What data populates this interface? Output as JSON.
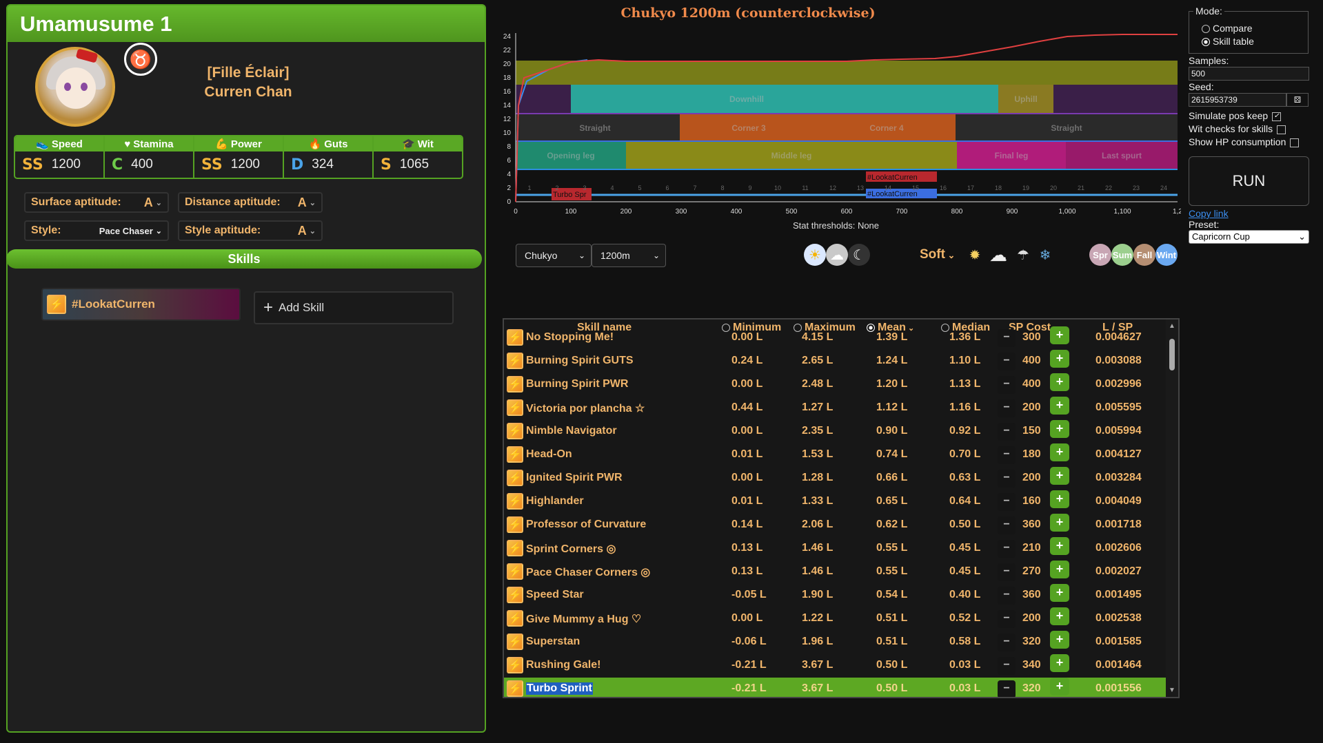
{
  "uma": {
    "title": "Umamusume 1",
    "outfit": "[Fille Éclair]",
    "name": "Curren Chan",
    "stats": [
      {
        "label": "Speed",
        "icon": "shoe-icon",
        "grade": "SS",
        "value": "1200",
        "grade_color": "#f3b33a"
      },
      {
        "label": "Stamina",
        "icon": "heart-icon",
        "grade": "C",
        "value": "400",
        "grade_color": "#6ecb4a"
      },
      {
        "label": "Power",
        "icon": "arm-icon",
        "grade": "SS",
        "value": "1200",
        "grade_color": "#f3b33a"
      },
      {
        "label": "Guts",
        "icon": "flame-icon",
        "grade": "D",
        "value": "324",
        "grade_color": "#4aa3e8"
      },
      {
        "label": "Wit",
        "icon": "graduation-cap-icon",
        "grade": "S",
        "value": "1065",
        "grade_color": "#f3b33a"
      }
    ],
    "surface_aptitude_label": "Surface aptitude:",
    "surface_aptitude": "A",
    "distance_aptitude_label": "Distance aptitude:",
    "distance_aptitude": "A",
    "style_label": "Style:",
    "style": "Pace Chaser",
    "style_aptitude_label": "Style aptitude:",
    "style_aptitude": "A",
    "skills_header": "Skills",
    "equipped_skill": "#LookatCurren",
    "add_skill": "Add Skill"
  },
  "chart": {
    "title": "Chukyo 1200m (counterclockwise)",
    "thresholds": "Stat thresholds: None",
    "y_ticks": [
      "0",
      "2",
      "4",
      "6",
      "8",
      "10",
      "12",
      "14",
      "16",
      "18",
      "20",
      "22",
      "24"
    ],
    "x_ticks": [
      "0",
      "100",
      "200",
      "300",
      "400",
      "500",
      "600",
      "700",
      "800",
      "900",
      "1,000",
      "1,100",
      "1,2"
    ],
    "section_numbers": [
      "1",
      "2",
      "3",
      "4",
      "5",
      "6",
      "7",
      "8",
      "9",
      "10",
      "11",
      "12",
      "13",
      "14",
      "15",
      "16",
      "17",
      "18",
      "19",
      "20",
      "21",
      "22",
      "23",
      "24"
    ],
    "track_labels": {
      "downhill": "Downhill",
      "uphill": "Uphill",
      "straight1": "Straight",
      "corner3": "Corner 3",
      "corner4": "Corner 4",
      "straight2": "Straight",
      "opening": "Opening leg",
      "middle": "Middle leg",
      "final": "Final leg",
      "last_spurt": "Last spurt"
    },
    "skill_markers": [
      "Turbo Spr",
      "#LookatCurren",
      "#LookatCurren"
    ],
    "colors": {
      "velocity": "#e04040",
      "accel": "#3b8ef0"
    }
  },
  "chart_data": {
    "type": "line",
    "title": "Chukyo 1200m (counterclockwise)",
    "xlim": [
      0,
      1200
    ],
    "ylim": [
      0,
      24
    ],
    "series": [
      {
        "x": [
          0,
          5,
          15,
          60,
          100,
          150,
          200,
          300,
          400,
          500,
          600,
          650,
          700,
          760,
          800,
          850,
          900,
          950,
          1000,
          1050,
          1100,
          1150,
          1200
        ],
        "y": [
          0,
          14,
          18,
          19.2,
          20.3,
          20.6,
          20.4,
          20.4,
          20.4,
          20.4,
          20.4,
          20.6,
          20.7,
          20.8,
          21.1,
          21.8,
          22.5,
          23.3,
          24.0,
          24.2,
          24.3,
          24.3,
          24.3
        ]
      },
      {
        "x": [
          0,
          5,
          20,
          60,
          100,
          130
        ],
        "y": [
          0,
          14,
          17.5,
          19.2,
          20.3,
          20.6
        ]
      }
    ]
  },
  "track": {
    "racetrack": "Chukyo",
    "distance": "1200m",
    "ground": "Soft",
    "time_icons": [
      "sun-icon",
      "cloudy-sun-icon",
      "moon-icon"
    ],
    "weather_icons": [
      "sunny-icon",
      "cloudy-icon",
      "rainy-icon",
      "snowy-icon"
    ],
    "seasons": [
      {
        "label": "Spr",
        "color": "#c8a6b4"
      },
      {
        "label": "Sum",
        "color": "#9ccf8e"
      },
      {
        "label": "Fall",
        "color": "#b58e72"
      },
      {
        "label": "Wint",
        "color": "#6aa8f0"
      }
    ]
  },
  "table": {
    "headers": {
      "name": "Skill name",
      "min": "Minimum",
      "max": "Maximum",
      "mean": "Mean",
      "median": "Median",
      "cost": "SP Cost",
      "lsp": "L / SP"
    },
    "rows": [
      {
        "name": "No Stopping Me!",
        "min": "0.00 L",
        "max": "4.15 L",
        "mean": "1.39 L",
        "median": "1.36 L",
        "cost": "300",
        "lsp": "0.004627"
      },
      {
        "name": "Burning Spirit GUTS",
        "min": "0.24 L",
        "max": "2.65 L",
        "mean": "1.24 L",
        "median": "1.10 L",
        "cost": "400",
        "lsp": "0.003088"
      },
      {
        "name": "Burning Spirit PWR",
        "min": "0.00 L",
        "max": "2.48 L",
        "mean": "1.20 L",
        "median": "1.13 L",
        "cost": "400",
        "lsp": "0.002996"
      },
      {
        "name": "Victoria por plancha ☆",
        "min": "0.44 L",
        "max": "1.27 L",
        "mean": "1.12 L",
        "median": "1.16 L",
        "cost": "200",
        "lsp": "0.005595"
      },
      {
        "name": "Nimble Navigator",
        "min": "0.00 L",
        "max": "2.35 L",
        "mean": "0.90 L",
        "median": "0.92 L",
        "cost": "150",
        "lsp": "0.005994"
      },
      {
        "name": "Head-On",
        "min": "0.01 L",
        "max": "1.53 L",
        "mean": "0.74 L",
        "median": "0.70 L",
        "cost": "180",
        "lsp": "0.004127"
      },
      {
        "name": "Ignited Spirit PWR",
        "min": "0.00 L",
        "max": "1.28 L",
        "mean": "0.66 L",
        "median": "0.63 L",
        "cost": "200",
        "lsp": "0.003284"
      },
      {
        "name": "Highlander",
        "min": "0.01 L",
        "max": "1.33 L",
        "mean": "0.65 L",
        "median": "0.64 L",
        "cost": "160",
        "lsp": "0.004049"
      },
      {
        "name": "Professor of Curvature",
        "min": "0.14 L",
        "max": "2.06 L",
        "mean": "0.62 L",
        "median": "0.50 L",
        "cost": "360",
        "lsp": "0.001718"
      },
      {
        "name": "Sprint Corners ◎",
        "min": "0.13 L",
        "max": "1.46 L",
        "mean": "0.55 L",
        "median": "0.45 L",
        "cost": "210",
        "lsp": "0.002606"
      },
      {
        "name": "Pace Chaser Corners ◎",
        "min": "0.13 L",
        "max": "1.46 L",
        "mean": "0.55 L",
        "median": "0.45 L",
        "cost": "270",
        "lsp": "0.002027"
      },
      {
        "name": "Speed Star",
        "min": "-0.05 L",
        "max": "1.90 L",
        "mean": "0.54 L",
        "median": "0.40 L",
        "cost": "360",
        "lsp": "0.001495"
      },
      {
        "name": "Give Mummy a Hug ♡",
        "min": "0.00 L",
        "max": "1.22 L",
        "mean": "0.51 L",
        "median": "0.52 L",
        "cost": "200",
        "lsp": "0.002538"
      },
      {
        "name": "Superstan",
        "min": "-0.06 L",
        "max": "1.96 L",
        "mean": "0.51 L",
        "median": "0.58 L",
        "cost": "320",
        "lsp": "0.001585"
      },
      {
        "name": "Rushing Gale!",
        "min": "-0.21 L",
        "max": "3.67 L",
        "mean": "0.50 L",
        "median": "0.03 L",
        "cost": "340",
        "lsp": "0.001464"
      },
      {
        "name": "Turbo Sprint",
        "min": "-0.21 L",
        "max": "3.67 L",
        "mean": "0.50 L",
        "median": "0.03 L",
        "cost": "320",
        "lsp": "0.001556",
        "selected": true
      }
    ]
  },
  "settings": {
    "mode_label": "Mode:",
    "mode_compare": "Compare",
    "mode_skill_table": "Skill table",
    "samples_label": "Samples:",
    "samples": "500",
    "seed_label": "Seed:",
    "seed": "2615953739",
    "sim_pos_keep": "Simulate pos keep",
    "wit_checks": "Wit checks for skills",
    "show_hp": "Show HP consumption",
    "run": "RUN",
    "copy_link": "Copy link",
    "preset_label": "Preset:",
    "preset": "Capricorn Cup"
  }
}
